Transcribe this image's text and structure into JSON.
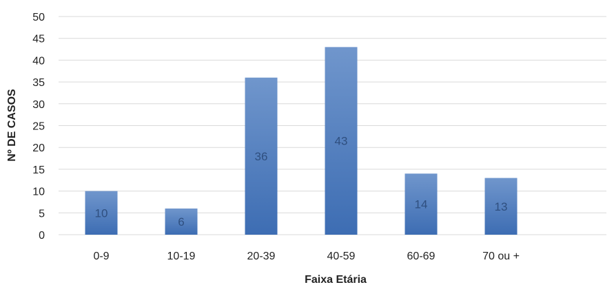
{
  "chart_data": {
    "type": "bar",
    "title": "",
    "xlabel": "Faixa Etária",
    "ylabel": "Nº DE CASOS",
    "categories": [
      "0-9",
      "10-19",
      "20-39",
      "40-59",
      "60-69",
      "70 ou +"
    ],
    "values": [
      10,
      6,
      36,
      43,
      14,
      13
    ],
    "data_labels": [
      "10",
      "6",
      "36",
      "43",
      "14",
      "13"
    ],
    "ylim": [
      0,
      50
    ],
    "ytick_step": 5,
    "yticks": [
      "0",
      "5",
      "10",
      "15",
      "20",
      "25",
      "30",
      "35",
      "40",
      "45",
      "50"
    ],
    "grid": true,
    "legend": "none",
    "colors": {
      "bar_top": "#7096cc",
      "bar_bottom": "#3d6db3",
      "grid": "#d9d9d9",
      "data_label": "#2f4f7f"
    }
  }
}
